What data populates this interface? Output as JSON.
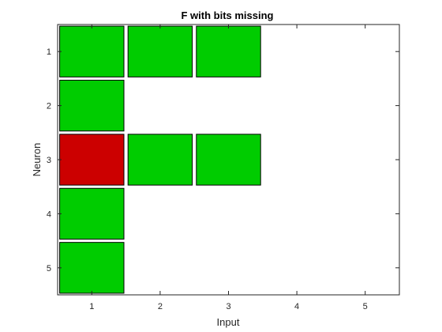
{
  "chart_data": {
    "type": "heatmap",
    "title": "F with bits missing",
    "xlabel": "Input",
    "ylabel": "Neuron",
    "x_ticks": [
      "1",
      "2",
      "3",
      "4",
      "5"
    ],
    "y_ticks": [
      "1",
      "2",
      "3",
      "4",
      "5"
    ],
    "xlim": [
      0.5,
      5.5
    ],
    "ylim": [
      0.5,
      5.5
    ],
    "y_direction": "reverse",
    "grid": true,
    "colors": {
      "on": "#00cc00",
      "missing": "#cc0000"
    },
    "cells": [
      {
        "neuron": 1,
        "input": 1,
        "state": "on"
      },
      {
        "neuron": 1,
        "input": 2,
        "state": "on"
      },
      {
        "neuron": 1,
        "input": 3,
        "state": "on"
      },
      {
        "neuron": 2,
        "input": 1,
        "state": "on"
      },
      {
        "neuron": 3,
        "input": 1,
        "state": "missing"
      },
      {
        "neuron": 3,
        "input": 2,
        "state": "on"
      },
      {
        "neuron": 3,
        "input": 3,
        "state": "on"
      },
      {
        "neuron": 4,
        "input": 1,
        "state": "on"
      },
      {
        "neuron": 5,
        "input": 1,
        "state": "on"
      }
    ]
  }
}
